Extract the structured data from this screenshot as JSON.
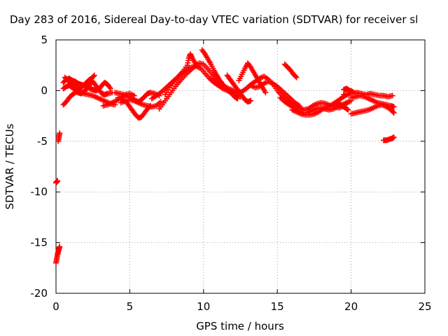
{
  "chart_data": {
    "type": "scatter",
    "title": "Day 283 of 2016, Sidereal Day-to-day VTEC variation (SDTVAR) for receiver sl",
    "xlabel": "GPS time / hours",
    "ylabel": "SDTVAR / TECUs",
    "xlim": [
      0,
      25
    ],
    "ylim": [
      -20,
      5
    ],
    "x_ticks": [
      0,
      5,
      10,
      15,
      20,
      25
    ],
    "y_ticks": [
      -20,
      -15,
      -10,
      -5,
      0,
      5
    ],
    "x_tick_labels": [
      "0",
      "5",
      "10",
      "15",
      "20",
      "25"
    ],
    "y_tick_labels": [
      "-20",
      "-15",
      "-10",
      "-5",
      "0",
      "5"
    ],
    "grid": true,
    "marker": "plus",
    "color": "#ff0000",
    "series": [
      {
        "points": [
          [
            0.0,
            -17.0
          ],
          [
            0.05,
            -16.6
          ],
          [
            0.1,
            -16.2
          ],
          [
            0.15,
            -15.9
          ],
          [
            0.2,
            -15.6
          ],
          [
            0.25,
            -15.4
          ],
          [
            0.0,
            -9.1
          ],
          [
            0.05,
            -9.0
          ],
          [
            0.1,
            -8.9
          ],
          [
            0.15,
            -5.0
          ],
          [
            0.2,
            -4.6
          ],
          [
            0.25,
            -4.2
          ],
          [
            0.5,
            -1.4
          ],
          [
            0.7,
            -1.1
          ],
          [
            0.9,
            -0.7
          ],
          [
            1.1,
            -0.4
          ],
          [
            1.3,
            -0.2
          ],
          [
            1.6,
            -0.1
          ],
          [
            1.9,
            -0.3
          ],
          [
            2.2,
            -0.4
          ],
          [
            2.5,
            -0.5
          ],
          [
            2.8,
            -0.7
          ],
          [
            3.1,
            -0.9
          ],
          [
            3.4,
            -1.1
          ],
          [
            3.7,
            -1.3
          ],
          [
            4.0,
            -1.4
          ],
          [
            0.5,
            0.2
          ],
          [
            0.7,
            0.4
          ],
          [
            0.9,
            0.5
          ],
          [
            1.1,
            0.3
          ],
          [
            1.3,
            0.1
          ],
          [
            1.5,
            -0.2
          ],
          [
            1.7,
            -0.3
          ],
          [
            1.9,
            -0.1
          ],
          [
            2.1,
            0.2
          ],
          [
            2.3,
            0.6
          ],
          [
            2.5,
            0.9
          ],
          [
            2.7,
            0.5
          ],
          [
            2.9,
            0.1
          ],
          [
            3.1,
            -0.3
          ],
          [
            3.3,
            -0.4
          ],
          [
            3.5,
            -0.3
          ],
          [
            3.8,
            -0.2
          ],
          [
            0.5,
            0.8
          ],
          [
            0.7,
            1.1
          ],
          [
            0.9,
            1.2
          ],
          [
            1.1,
            1.0
          ],
          [
            1.3,
            0.9
          ],
          [
            1.5,
            0.7
          ],
          [
            1.7,
            0.6
          ],
          [
            1.9,
            0.5
          ],
          [
            2.1,
            0.4
          ],
          [
            2.3,
            0.2
          ],
          [
            2.5,
            0.1
          ],
          [
            2.7,
            0.0
          ],
          [
            2.9,
            0.1
          ],
          [
            3.1,
            0.5
          ],
          [
            3.3,
            0.8
          ],
          [
            3.5,
            0.6
          ],
          [
            3.7,
            0.2
          ],
          [
            0.6,
            1.3
          ],
          [
            0.8,
            1.0
          ],
          [
            1.0,
            0.8
          ],
          [
            1.2,
            0.5
          ],
          [
            1.4,
            0.3
          ],
          [
            1.6,
            0.2
          ],
          [
            1.8,
            0.4
          ],
          [
            2.0,
            0.7
          ],
          [
            2.2,
            1.0
          ],
          [
            2.4,
            1.2
          ],
          [
            2.6,
            1.5
          ],
          [
            4.0,
            -0.2
          ],
          [
            4.3,
            -0.3
          ],
          [
            4.6,
            -0.4
          ],
          [
            4.9,
            -0.6
          ],
          [
            5.2,
            -0.8
          ],
          [
            5.4,
            -1.0
          ],
          [
            5.6,
            -1.1
          ],
          [
            5.8,
            -0.9
          ],
          [
            6.0,
            -0.6
          ],
          [
            6.2,
            -0.3
          ],
          [
            6.4,
            -0.2
          ],
          [
            6.7,
            -0.3
          ],
          [
            7.0,
            -0.5
          ],
          [
            4.2,
            -0.7
          ],
          [
            4.5,
            -0.9
          ],
          [
            4.8,
            -1.2
          ],
          [
            5.0,
            -1.6
          ],
          [
            5.2,
            -2.0
          ],
          [
            5.4,
            -2.4
          ],
          [
            5.6,
            -2.7
          ],
          [
            5.8,
            -2.6
          ],
          [
            6.0,
            -2.2
          ],
          [
            6.2,
            -1.8
          ],
          [
            6.4,
            -1.5
          ],
          [
            4.4,
            -1.2
          ],
          [
            4.7,
            -1.0
          ],
          [
            5.0,
            -0.9
          ],
          [
            5.3,
            -1.0
          ],
          [
            5.6,
            -1.2
          ],
          [
            5.9,
            -1.4
          ],
          [
            6.2,
            -1.5
          ],
          [
            6.5,
            -1.6
          ],
          [
            6.8,
            -1.5
          ],
          [
            7.1,
            -1.1
          ],
          [
            3.2,
            -1.5
          ],
          [
            3.5,
            -1.4
          ],
          [
            3.8,
            -1.2
          ],
          [
            4.1,
            -1.0
          ],
          [
            4.4,
            -0.7
          ],
          [
            4.7,
            -0.4
          ],
          [
            5.0,
            -0.3
          ],
          [
            5.3,
            -0.5
          ],
          [
            6.5,
            -0.8
          ],
          [
            6.8,
            -0.5
          ],
          [
            7.1,
            -0.2
          ],
          [
            7.4,
            0.2
          ],
          [
            7.7,
            0.6
          ],
          [
            8.0,
            1.0
          ],
          [
            8.3,
            1.4
          ],
          [
            8.6,
            1.8
          ],
          [
            8.9,
            2.1
          ],
          [
            9.2,
            2.3
          ],
          [
            9.5,
            2.4
          ],
          [
            9.8,
            2.2
          ],
          [
            10.1,
            1.7
          ],
          [
            10.4,
            1.2
          ],
          [
            10.7,
            0.8
          ],
          [
            11.0,
            0.5
          ],
          [
            11.3,
            0.2
          ],
          [
            11.6,
            0.0
          ],
          [
            11.9,
            -0.2
          ],
          [
            12.2,
            -0.4
          ],
          [
            12.5,
            -0.6
          ],
          [
            7.0,
            -1.8
          ],
          [
            7.3,
            -1.2
          ],
          [
            7.6,
            -0.6
          ],
          [
            7.9,
            0.0
          ],
          [
            8.2,
            0.6
          ],
          [
            8.5,
            1.1
          ],
          [
            8.8,
            1.6
          ],
          [
            9.1,
            2.0
          ],
          [
            9.4,
            2.4
          ],
          [
            9.7,
            2.7
          ],
          [
            10.0,
            2.6
          ],
          [
            10.3,
            2.1
          ],
          [
            10.6,
            1.6
          ],
          [
            10.9,
            1.2
          ],
          [
            11.2,
            0.8
          ],
          [
            7.4,
            -0.4
          ],
          [
            7.7,
            0.3
          ],
          [
            8.0,
            0.9
          ],
          [
            8.3,
            1.4
          ],
          [
            8.6,
            1.9
          ],
          [
            8.9,
            2.5
          ],
          [
            9.0,
            3.2
          ],
          [
            9.1,
            3.6
          ],
          [
            9.2,
            3.3
          ],
          [
            9.4,
            2.8
          ],
          [
            9.6,
            2.4
          ],
          [
            9.9,
            4.0
          ],
          [
            10.1,
            3.6
          ],
          [
            10.3,
            3.1
          ],
          [
            10.5,
            2.6
          ],
          [
            10.7,
            2.0
          ],
          [
            10.9,
            1.5
          ],
          [
            11.1,
            1.0
          ],
          [
            11.3,
            0.6
          ],
          [
            11.5,
            0.3
          ],
          [
            11.7,
            0.0
          ],
          [
            11.9,
            -0.3
          ],
          [
            12.1,
            -0.6
          ],
          [
            12.3,
            -0.8
          ],
          [
            10.5,
            1.2
          ],
          [
            10.8,
            0.9
          ],
          [
            11.1,
            0.6
          ],
          [
            11.4,
            0.4
          ],
          [
            11.7,
            0.2
          ],
          [
            12.0,
            0.0
          ],
          [
            12.3,
            -0.2
          ],
          [
            12.6,
            -0.1
          ],
          [
            12.9,
            0.2
          ],
          [
            13.2,
            0.6
          ],
          [
            13.5,
            0.9
          ],
          [
            13.8,
            1.2
          ],
          [
            14.1,
            1.4
          ],
          [
            14.4,
            1.1
          ],
          [
            14.7,
            0.6
          ],
          [
            15.0,
            0.0
          ],
          [
            15.3,
            -0.5
          ],
          [
            15.6,
            -0.9
          ],
          [
            11.6,
            1.5
          ],
          [
            11.8,
            1.1
          ],
          [
            12.0,
            0.7
          ],
          [
            12.2,
            0.3
          ],
          [
            12.4,
            -0.1
          ],
          [
            12.6,
            -0.5
          ],
          [
            12.8,
            -0.9
          ],
          [
            13.0,
            -1.1
          ],
          [
            13.2,
            -1.0
          ],
          [
            12.4,
            1.0
          ],
          [
            12.6,
            1.6
          ],
          [
            12.8,
            2.2
          ],
          [
            13.0,
            2.7
          ],
          [
            13.2,
            2.3
          ],
          [
            13.4,
            1.8
          ],
          [
            13.6,
            1.3
          ],
          [
            13.8,
            0.8
          ],
          [
            14.0,
            0.3
          ],
          [
            14.2,
            -0.2
          ],
          [
            13.2,
            0.5
          ],
          [
            13.5,
            0.3
          ],
          [
            13.8,
            0.4
          ],
          [
            14.1,
            0.7
          ],
          [
            14.4,
            0.9
          ],
          [
            14.7,
            0.7
          ],
          [
            15.0,
            0.4
          ],
          [
            15.3,
            0.0
          ],
          [
            15.6,
            -0.4
          ],
          [
            15.9,
            -0.8
          ],
          [
            16.2,
            -1.2
          ],
          [
            16.5,
            -1.5
          ],
          [
            15.5,
            2.6
          ],
          [
            15.7,
            2.3
          ],
          [
            15.9,
            2.0
          ],
          [
            16.1,
            1.6
          ],
          [
            16.3,
            1.3
          ],
          [
            15.2,
            -0.7
          ],
          [
            15.5,
            -1.1
          ],
          [
            15.8,
            -1.4
          ],
          [
            16.1,
            -1.7
          ],
          [
            16.4,
            -2.0
          ],
          [
            16.7,
            -2.2
          ],
          [
            17.0,
            -2.2
          ],
          [
            17.3,
            -2.0
          ],
          [
            17.6,
            -1.8
          ],
          [
            17.9,
            -1.7
          ],
          [
            18.2,
            -1.8
          ],
          [
            18.5,
            -1.9
          ],
          [
            18.8,
            -1.8
          ],
          [
            19.1,
            -1.6
          ],
          [
            19.4,
            -1.4
          ],
          [
            19.7,
            -1.2
          ],
          [
            20.0,
            -1.0
          ],
          [
            15.6,
            -0.9
          ],
          [
            15.9,
            -1.2
          ],
          [
            16.2,
            -1.5
          ],
          [
            16.5,
            -1.7
          ],
          [
            16.8,
            -1.9
          ],
          [
            17.1,
            -1.8
          ],
          [
            17.4,
            -1.5
          ],
          [
            17.7,
            -1.3
          ],
          [
            18.0,
            -1.2
          ],
          [
            18.3,
            -1.3
          ],
          [
            18.6,
            -1.5
          ],
          [
            18.9,
            -1.6
          ],
          [
            19.2,
            -1.7
          ],
          [
            19.5,
            -1.5
          ],
          [
            19.8,
            -1.1
          ],
          [
            16.0,
            -1.9
          ],
          [
            16.3,
            -2.1
          ],
          [
            16.6,
            -2.3
          ],
          [
            16.9,
            -2.4
          ],
          [
            17.2,
            -2.4
          ],
          [
            17.5,
            -2.3
          ],
          [
            17.8,
            -2.1
          ],
          [
            18.1,
            -1.8
          ],
          [
            18.4,
            -1.6
          ],
          [
            18.7,
            -1.4
          ],
          [
            19.0,
            -1.1
          ],
          [
            19.3,
            -0.8
          ],
          [
            19.6,
            -0.5
          ],
          [
            19.9,
            -0.3
          ],
          [
            20.2,
            -0.2
          ],
          [
            19.5,
            -0.4
          ],
          [
            19.8,
            -0.3
          ],
          [
            20.1,
            -0.3
          ],
          [
            20.4,
            -0.2
          ],
          [
            20.7,
            -0.3
          ],
          [
            21.0,
            -0.4
          ],
          [
            21.3,
            -0.3
          ],
          [
            21.6,
            -0.4
          ],
          [
            21.9,
            -0.5
          ],
          [
            22.2,
            -0.5
          ],
          [
            22.5,
            -0.6
          ],
          [
            22.8,
            -0.5
          ],
          [
            20.0,
            -0.7
          ],
          [
            20.3,
            -0.6
          ],
          [
            20.6,
            -0.5
          ],
          [
            20.9,
            -0.6
          ],
          [
            21.2,
            -0.8
          ],
          [
            21.5,
            -1.0
          ],
          [
            21.8,
            -1.2
          ],
          [
            22.1,
            -1.3
          ],
          [
            22.4,
            -1.4
          ],
          [
            22.7,
            -1.5
          ],
          [
            22.9,
            -1.6
          ],
          [
            20.0,
            -2.3
          ],
          [
            20.3,
            -2.2
          ],
          [
            20.6,
            -2.1
          ],
          [
            20.9,
            -2.0
          ],
          [
            21.2,
            -1.9
          ],
          [
            21.5,
            -1.7
          ],
          [
            21.8,
            -1.5
          ],
          [
            22.1,
            -1.4
          ],
          [
            22.4,
            -1.6
          ],
          [
            22.7,
            -1.9
          ],
          [
            22.9,
            -2.2
          ],
          [
            22.2,
            -4.9
          ],
          [
            22.4,
            -4.9
          ],
          [
            22.6,
            -4.8
          ],
          [
            22.8,
            -4.7
          ],
          [
            22.9,
            -4.6
          ],
          [
            19.5,
            0.1
          ],
          [
            19.7,
            0.2
          ],
          [
            19.9,
            0.0
          ],
          [
            20.1,
            -0.1
          ],
          [
            19.0,
            -1.4
          ],
          [
            19.2,
            -1.3
          ],
          [
            19.4,
            -1.5
          ],
          [
            19.6,
            -1.7
          ],
          [
            19.8,
            -1.9
          ]
        ]
      }
    ]
  }
}
